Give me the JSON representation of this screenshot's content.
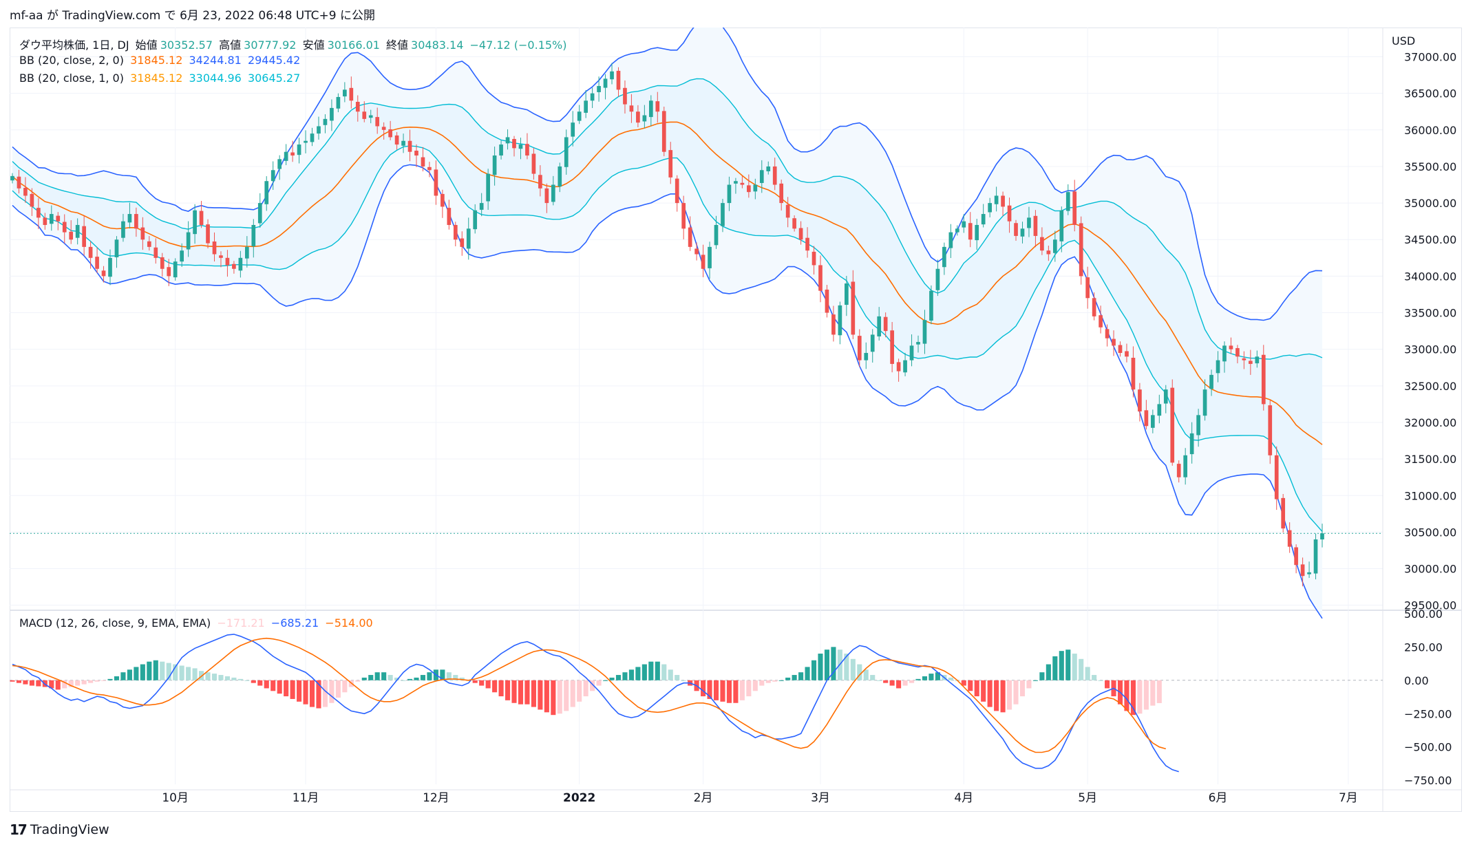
{
  "header": {
    "publish_line": "mf-aa が TradingView.com で 6月 23, 2022 06:48 UTC+9 に公開"
  },
  "footer": {
    "brand": "TradingView",
    "logo_icon": "tradingview-logo"
  },
  "legend": {
    "symbol": {
      "name": "ダウ平均株価, 1日, DJ",
      "open_label": "始値",
      "open": "30352.57",
      "high_label": "高値",
      "high": "30777.92",
      "low_label": "安値",
      "low": "30166.01",
      "close_label": "終値",
      "close": "30483.14",
      "change": "−47.12 (−0.15%)"
    },
    "bb2": {
      "name": "BB (20, close, 2, 0)",
      "basis": "31845.12",
      "upper": "34244.81",
      "lower": "29445.42"
    },
    "bb1": {
      "name": "BB (20, close, 1, 0)",
      "basis": "31845.12",
      "upper": "33044.96",
      "lower": "30645.27"
    },
    "macd": {
      "name": "MACD (12, 26, close, 9, EMA, EMA)",
      "hist": "−171.21",
      "macd": "−685.21",
      "signal": "−514.00"
    }
  },
  "colors": {
    "up": "#26a69a",
    "down": "#ef5350",
    "bb2_basis": "#ff6d00",
    "bb2_band": "#2962ff",
    "bb1_basis": "#ff9800",
    "bb1_band": "#00bcd4",
    "fill": "#e3f2fd",
    "macd": "#2962ff",
    "signal": "#ff6d00",
    "hist_up_strong": "#26a69a",
    "hist_up_weak": "#b2dfdb",
    "hist_down_strong": "#ff5252",
    "hist_down_weak": "#ffcdd2",
    "text": "#131722",
    "axis_text": "#131722"
  },
  "chart_data": [
    {
      "type": "candlestick",
      "title": "ダウ平均株価, 1日, DJ",
      "currency": "USD",
      "ylim": [
        29450,
        37400
      ],
      "y_ticks": [
        "37000.00",
        "36500.00",
        "36000.00",
        "35500.00",
        "35000.00",
        "34500.00",
        "34000.00",
        "33500.00",
        "33000.00",
        "32500.00",
        "32000.00",
        "31500.00",
        "31000.00",
        "30500.00",
        "30000.00",
        "29500.00"
      ],
      "x_ticks": [
        {
          "label": "10月",
          "index": 25
        },
        {
          "label": "11月",
          "index": 45
        },
        {
          "label": "12月",
          "index": 65
        },
        {
          "label": "2022",
          "index": 87
        },
        {
          "label": "2月",
          "index": 106
        },
        {
          "label": "3月",
          "index": 124
        },
        {
          "label": "4月",
          "index": 146
        },
        {
          "label": "5月",
          "index": 165
        },
        {
          "label": "6月",
          "index": 185
        },
        {
          "label": "7月",
          "index": 205
        }
      ],
      "last_price": 30483.14,
      "close": [
        35369,
        35200,
        35100,
        34950,
        34800,
        34700,
        34850,
        34750,
        34600,
        34500,
        34700,
        34400,
        34250,
        34100,
        34000,
        34250,
        34500,
        34750,
        34850,
        34650,
        34500,
        34400,
        34250,
        34100,
        34000,
        34200,
        34350,
        34600,
        34900,
        34700,
        34450,
        34300,
        34250,
        34150,
        34100,
        34250,
        34400,
        34700,
        35000,
        35300,
        35450,
        35600,
        35700,
        35650,
        35800,
        35850,
        35950,
        36050,
        36150,
        36300,
        36450,
        36550,
        36400,
        36250,
        36150,
        36200,
        36050,
        36000,
        35900,
        35800,
        35850,
        35700,
        35650,
        35500,
        35450,
        35100,
        34950,
        34700,
        34500,
        34400,
        34650,
        34900,
        35000,
        35400,
        35650,
        35800,
        35900,
        35750,
        35800,
        35650,
        35400,
        35200,
        35000,
        35250,
        35500,
        35900,
        36100,
        36250,
        36400,
        36500,
        36600,
        36700,
        36800,
        36550,
        36350,
        36250,
        36100,
        36200,
        36400,
        36250,
        35700,
        35350,
        35000,
        34650,
        34400,
        34300,
        34100,
        34400,
        34700,
        35000,
        35250,
        35300,
        35250,
        35150,
        35250,
        35450,
        35500,
        35250,
        35000,
        34800,
        34650,
        34500,
        34350,
        34150,
        33800,
        33500,
        33200,
        33600,
        33900,
        33200,
        32850,
        32950,
        33200,
        33450,
        33250,
        32800,
        32700,
        32850,
        33050,
        33100,
        33400,
        33800,
        34100,
        34400,
        34600,
        34650,
        34750,
        34500,
        34700,
        34850,
        35000,
        35100,
        34950,
        34750,
        34550,
        34650,
        34800,
        34550,
        34350,
        34300,
        34500,
        34900,
        35150,
        34700,
        34000,
        33700,
        33450,
        33300,
        33150,
        33050,
        32950,
        32900,
        32450,
        32150,
        31950,
        32100,
        32250,
        32450,
        31450,
        31250,
        31550,
        31850,
        32100,
        32450,
        32650,
        32850,
        33050,
        33000,
        32900,
        32850,
        32800,
        32900,
        32250,
        31550,
        30950,
        30550,
        30300,
        30050,
        29900,
        29950,
        30400,
        30483
      ]
    },
    {
      "type": "line",
      "title": "MACD (12, 26, close, 9, EMA, EMA)",
      "ylim": [
        -780,
        520
      ],
      "y_ticks": [
        "500.00",
        "250.00",
        "0.00",
        "−250.00",
        "−500.00",
        "−750.00"
      ],
      "series": [
        {
          "name": "MACD",
          "values": [
            120,
            100,
            80,
            40,
            20,
            -30,
            -60,
            -100,
            -130,
            -150,
            -140,
            -160,
            -140,
            -120,
            -130,
            -160,
            -170,
            -200,
            -210,
            -200,
            -190,
            -150,
            -100,
            -40,
            20,
            100,
            170,
            210,
            240,
            260,
            280,
            300,
            320,
            340,
            345,
            330,
            310,
            290,
            260,
            220,
            180,
            150,
            120,
            100,
            80,
            60,
            20,
            -30,
            -80,
            -120,
            -160,
            -200,
            -230,
            -240,
            -250,
            -230,
            -180,
            -120,
            -60,
            0,
            60,
            100,
            120,
            110,
            80,
            40,
            10,
            -20,
            -30,
            -40,
            -20,
            40,
            80,
            120,
            160,
            200,
            230,
            260,
            280,
            290,
            270,
            240,
            210,
            190,
            180,
            150,
            110,
            60,
            20,
            -30,
            -80,
            -140,
            -200,
            -250,
            -270,
            -280,
            -270,
            -240,
            -200,
            -160,
            -120,
            -80,
            -40,
            -20,
            -20,
            -40,
            -80,
            -120,
            -180,
            -240,
            -300,
            -340,
            -380,
            -400,
            -430,
            -410,
            -420,
            -440,
            -440,
            -430,
            -420,
            -400,
            -300,
            -200,
            -100,
            0,
            60,
            120,
            180,
            230,
            260,
            250,
            220,
            190,
            170,
            150,
            130,
            120,
            110,
            100,
            110,
            100,
            60,
            20,
            -20,
            -60,
            -100,
            -140,
            -200,
            -260,
            -320,
            -380,
            -440,
            -520,
            -580,
            -620,
            -640,
            -660,
            -660,
            -640,
            -600,
            -520,
            -420,
            -320,
            -230,
            -170,
            -130,
            -100,
            -80,
            -60,
            -90,
            -140,
            -210,
            -300,
            -400,
            -500,
            -580,
            -640,
            -670,
            -685
          ]
        },
        {
          "name": "Signal",
          "values": [
            110,
            105,
            95,
            80,
            65,
            45,
            25,
            5,
            -15,
            -40,
            -60,
            -80,
            -95,
            -105,
            -110,
            -120,
            -130,
            -145,
            -160,
            -175,
            -185,
            -185,
            -180,
            -170,
            -150,
            -120,
            -90,
            -50,
            -10,
            30,
            70,
            110,
            150,
            190,
            230,
            260,
            280,
            300,
            310,
            315,
            310,
            300,
            285,
            265,
            245,
            220,
            195,
            165,
            135,
            100,
            60,
            20,
            -20,
            -60,
            -100,
            -130,
            -150,
            -160,
            -160,
            -150,
            -130,
            -100,
            -70,
            -40,
            -20,
            -5,
            5,
            10,
            10,
            5,
            0,
            10,
            25,
            45,
            70,
            95,
            120,
            145,
            170,
            195,
            215,
            225,
            228,
            225,
            215,
            200,
            180,
            160,
            135,
            105,
            70,
            30,
            -20,
            -70,
            -120,
            -160,
            -200,
            -225,
            -235,
            -240,
            -235,
            -225,
            -210,
            -195,
            -180,
            -170,
            -170,
            -180,
            -200,
            -230,
            -260,
            -290,
            -320,
            -350,
            -380,
            -400,
            -420,
            -440,
            -460,
            -480,
            -500,
            -510,
            -500,
            -460,
            -400,
            -330,
            -250,
            -170,
            -90,
            -20,
            40,
            90,
            130,
            150,
            155,
            150,
            140,
            130,
            120,
            110,
            105,
            100,
            90,
            70,
            40,
            0,
            -50,
            -100,
            -150,
            -200,
            -250,
            -300,
            -350,
            -400,
            -450,
            -490,
            -520,
            -540,
            -540,
            -530,
            -500,
            -450,
            -390,
            -320,
            -260,
            -210,
            -170,
            -145,
            -130,
            -140,
            -170,
            -220,
            -280,
            -350,
            -420,
            -470,
            -500,
            -514
          ]
        },
        {
          "name": "Histogram",
          "values": [
            -10,
            -20,
            -30,
            -40,
            -45,
            -50,
            -60,
            -70,
            -60,
            -50,
            -40,
            -30,
            -20,
            -10,
            -5,
            10,
            30,
            60,
            80,
            100,
            120,
            140,
            150,
            140,
            130,
            120,
            110,
            100,
            90,
            70,
            60,
            50,
            40,
            30,
            20,
            10,
            0,
            -20,
            -40,
            -60,
            -80,
            -100,
            -120,
            -140,
            -160,
            -180,
            -200,
            -210,
            -200,
            -170,
            -130,
            -90,
            -50,
            -10,
            20,
            40,
            60,
            60,
            40,
            20,
            0,
            10,
            20,
            40,
            60,
            80,
            80,
            60,
            40,
            20,
            0,
            -20,
            -40,
            -60,
            -90,
            -120,
            -150,
            -170,
            -180,
            -180,
            -200,
            -220,
            -240,
            -260,
            -250,
            -230,
            -200,
            -160,
            -120,
            -80,
            -40,
            0,
            20,
            40,
            60,
            80,
            100,
            120,
            140,
            140,
            120,
            80,
            40,
            0,
            -40,
            -80,
            -120,
            -140,
            -150,
            -160,
            -170,
            -170,
            -150,
            -120,
            -80,
            -40,
            -20,
            -10,
            0,
            20,
            40,
            60,
            100,
            150,
            200,
            230,
            250,
            230,
            200,
            160,
            120,
            80,
            40,
            0,
            -20,
            -40,
            -60,
            -40,
            -20,
            10,
            30,
            50,
            60,
            40,
            20,
            0,
            -40,
            -80,
            -120,
            -160,
            -200,
            -230,
            -240,
            -220,
            -180,
            -120,
            -60,
            0,
            60,
            120,
            180,
            220,
            230,
            200,
            160,
            100,
            40,
            0,
            -60,
            -120,
            -180,
            -230,
            -260,
            -250,
            -220,
            -190,
            -171
          ]
        }
      ]
    }
  ]
}
